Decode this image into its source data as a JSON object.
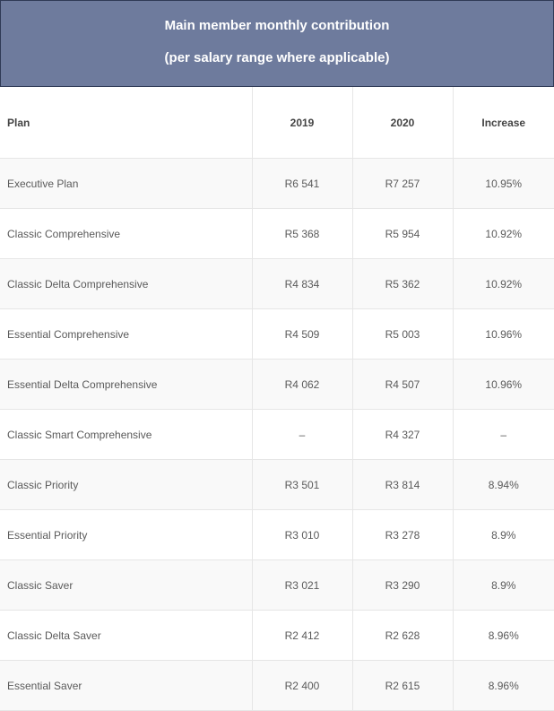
{
  "header": {
    "title_line1": "Main member monthly contribution",
    "title_line2": "(per salary range where applicable)"
  },
  "table": {
    "columns": [
      "Plan",
      "2019",
      "2020",
      "Increase"
    ],
    "rows": [
      {
        "plan": "Executive Plan",
        "y2019": "R6 541",
        "y2020": "R7 257",
        "increase": "10.95%"
      },
      {
        "plan": "Classic Comprehensive",
        "y2019": "R5 368",
        "y2020": "R5 954",
        "increase": "10.92%"
      },
      {
        "plan": "Classic Delta Comprehensive",
        "y2019": "R4 834",
        "y2020": "R5 362",
        "increase": "10.92%"
      },
      {
        "plan": "Essential Comprehensive",
        "y2019": "R4 509",
        "y2020": "R5 003",
        "increase": "10.96%"
      },
      {
        "plan": "Essential Delta Comprehensive",
        "y2019": "R4 062",
        "y2020": "R4 507",
        "increase": "10.96%"
      },
      {
        "plan": "Classic Smart Comprehensive",
        "y2019": "–",
        "y2020": "R4 327",
        "increase": "–"
      },
      {
        "plan": "Classic Priority",
        "y2019": "R3 501",
        "y2020": "R3 814",
        "increase": "8.94%"
      },
      {
        "plan": "Essential Priority",
        "y2019": "R3 010",
        "y2020": "R3 278",
        "increase": "8.9%"
      },
      {
        "plan": "Classic Saver",
        "y2019": "R3 021",
        "y2020": "R3 290",
        "increase": "8.9%"
      },
      {
        "plan": "Classic Delta Saver",
        "y2019": "R2 412",
        "y2020": "R2 628",
        "increase": "8.96%"
      },
      {
        "plan": "Essential Saver",
        "y2019": "R2 400",
        "y2020": "R2 615",
        "increase": "8.96%"
      }
    ]
  },
  "colors": {
    "header_bg": "#6e7b9d",
    "header_text": "#ffffff",
    "stripe_row": "#f9f9f9"
  }
}
